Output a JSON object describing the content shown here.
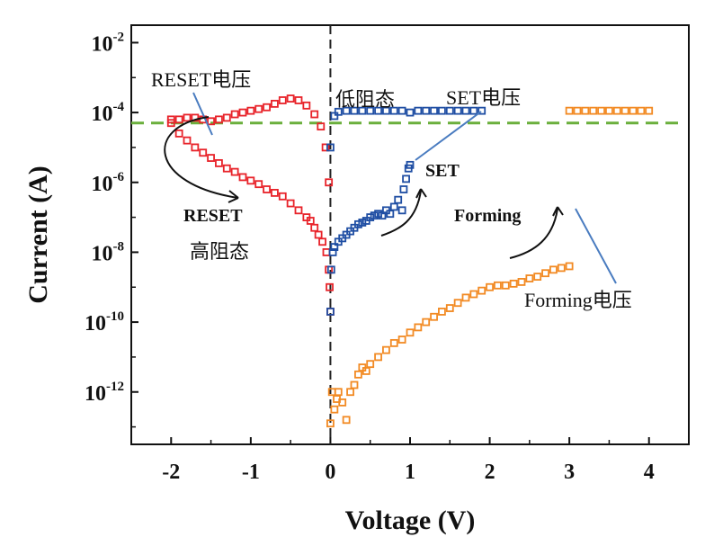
{
  "chart_data": {
    "type": "scatter",
    "xlabel": "Voltage (V)",
    "ylabel": "Current (A)",
    "xlim": [
      -2.5,
      4.5
    ],
    "ylim": [
      -13.5,
      -1.5
    ],
    "y_scale": "log",
    "x_ticks": [
      {
        "value": -2,
        "label": "-2"
      },
      {
        "value": -1,
        "label": "-1"
      },
      {
        "value": 0,
        "label": "0"
      },
      {
        "value": 1,
        "label": "1"
      },
      {
        "value": 2,
        "label": "2"
      },
      {
        "value": 3,
        "label": "3"
      },
      {
        "value": 4,
        "label": "4"
      }
    ],
    "y_ticks": [
      {
        "exp": -2,
        "base": "10",
        "sup": "-2"
      },
      {
        "exp": -4,
        "base": "10",
        "sup": "-4"
      },
      {
        "exp": -6,
        "base": "10",
        "sup": "-6"
      },
      {
        "exp": -8,
        "base": "10",
        "sup": "-8"
      },
      {
        "exp": -10,
        "base": "10",
        "sup": "-10"
      },
      {
        "exp": -12,
        "base": "10",
        "sup": "-12"
      }
    ],
    "reference_lines": [
      {
        "kind": "vertical",
        "x": 0,
        "color": "#222222",
        "style": "dashed"
      },
      {
        "kind": "horizontal",
        "y_exp": -4.3,
        "color": "#6aaf3c",
        "style": "dashed"
      }
    ],
    "series": [
      {
        "color": "#e8232a",
        "points": [
          [
            -1.5,
            -4.25
          ],
          [
            -1.4,
            -4.2
          ],
          [
            -1.3,
            -4.15
          ],
          [
            -1.2,
            -4.05
          ],
          [
            -1.1,
            -4.0
          ],
          [
            -1.0,
            -3.95
          ],
          [
            -0.9,
            -3.9
          ],
          [
            -0.8,
            -3.85
          ],
          [
            -0.7,
            -3.75
          ],
          [
            -0.6,
            -3.65
          ],
          [
            -0.5,
            -3.6
          ],
          [
            -0.4,
            -3.65
          ],
          [
            -0.3,
            -3.8
          ],
          [
            -0.2,
            -4.05
          ],
          [
            -0.12,
            -4.4
          ],
          [
            -0.06,
            -5.0
          ],
          [
            -0.02,
            -6.0
          ],
          [
            -2.0,
            -4.3
          ],
          [
            -1.9,
            -4.6
          ],
          [
            -1.8,
            -4.8
          ],
          [
            -1.7,
            -5.0
          ],
          [
            -1.6,
            -5.15
          ],
          [
            -1.5,
            -5.3
          ],
          [
            -1.4,
            -5.45
          ],
          [
            -1.3,
            -5.6
          ],
          [
            -1.2,
            -5.7
          ],
          [
            -1.1,
            -5.85
          ],
          [
            -1.0,
            -5.95
          ],
          [
            -0.9,
            -6.05
          ],
          [
            -0.8,
            -6.2
          ],
          [
            -0.7,
            -6.3
          ],
          [
            -0.6,
            -6.4
          ],
          [
            -0.5,
            -6.6
          ],
          [
            -0.4,
            -6.8
          ],
          [
            -0.3,
            -7.0
          ],
          [
            -0.25,
            -7.1
          ],
          [
            -0.2,
            -7.3
          ],
          [
            -0.15,
            -7.5
          ],
          [
            -0.1,
            -7.7
          ],
          [
            -0.05,
            -8.0
          ],
          [
            -0.02,
            -8.5
          ],
          [
            -0.01,
            -9.0
          ],
          [
            0.0,
            -9.7
          ],
          [
            -2.0,
            -4.2
          ],
          [
            -1.9,
            -4.2
          ],
          [
            -1.8,
            -4.15
          ],
          [
            -1.7,
            -4.15
          ],
          [
            -1.6,
            -4.2
          ]
        ]
      },
      {
        "color": "#1f4ea3",
        "points": [
          [
            0.0,
            -9.7
          ],
          [
            0.01,
            -8.5
          ],
          [
            0.03,
            -8.0
          ],
          [
            0.05,
            -7.85
          ],
          [
            0.1,
            -7.7
          ],
          [
            0.15,
            -7.6
          ],
          [
            0.2,
            -7.5
          ],
          [
            0.25,
            -7.4
          ],
          [
            0.3,
            -7.3
          ],
          [
            0.35,
            -7.2
          ],
          [
            0.4,
            -7.15
          ],
          [
            0.45,
            -7.1
          ],
          [
            0.5,
            -7.0
          ],
          [
            0.55,
            -6.95
          ],
          [
            0.6,
            -6.9
          ],
          [
            0.65,
            -6.95
          ],
          [
            0.7,
            -6.8
          ],
          [
            0.75,
            -6.9
          ],
          [
            0.8,
            -6.7
          ],
          [
            0.85,
            -6.5
          ],
          [
            0.9,
            -6.8
          ],
          [
            0.92,
            -6.2
          ],
          [
            0.95,
            -5.9
          ],
          [
            0.98,
            -5.6
          ],
          [
            1.0,
            -5.5
          ],
          [
            1.0,
            -4.0
          ],
          [
            1.1,
            -3.95
          ],
          [
            1.2,
            -3.95
          ],
          [
            1.3,
            -3.95
          ],
          [
            1.4,
            -3.95
          ],
          [
            1.5,
            -3.95
          ],
          [
            1.6,
            -3.95
          ],
          [
            1.7,
            -3.95
          ],
          [
            1.8,
            -3.95
          ],
          [
            1.9,
            -3.95
          ],
          [
            0.0,
            -5.0
          ],
          [
            0.05,
            -4.1
          ],
          [
            0.1,
            -3.98
          ],
          [
            0.2,
            -3.95
          ],
          [
            0.3,
            -3.95
          ],
          [
            0.4,
            -3.95
          ],
          [
            0.5,
            -3.95
          ],
          [
            0.6,
            -3.95
          ],
          [
            0.7,
            -3.95
          ],
          [
            0.8,
            -3.95
          ],
          [
            0.9,
            -3.95
          ]
        ]
      },
      {
        "color": "#f28a23",
        "points": [
          [
            0.0,
            -12.9
          ],
          [
            0.02,
            -12.0
          ],
          [
            0.05,
            -12.5
          ],
          [
            0.08,
            -12.2
          ],
          [
            0.1,
            -12.0
          ],
          [
            0.15,
            -12.3
          ],
          [
            0.2,
            -12.8
          ],
          [
            0.25,
            -12.0
          ],
          [
            0.3,
            -11.8
          ],
          [
            0.35,
            -11.5
          ],
          [
            0.4,
            -11.3
          ],
          [
            0.45,
            -11.4
          ],
          [
            0.5,
            -11.2
          ],
          [
            0.6,
            -11.0
          ],
          [
            0.7,
            -10.8
          ],
          [
            0.8,
            -10.6
          ],
          [
            0.9,
            -10.5
          ],
          [
            1.0,
            -10.3
          ],
          [
            1.1,
            -10.15
          ],
          [
            1.2,
            -10.0
          ],
          [
            1.3,
            -9.85
          ],
          [
            1.4,
            -9.7
          ],
          [
            1.5,
            -9.6
          ],
          [
            1.6,
            -9.45
          ],
          [
            1.7,
            -9.3
          ],
          [
            1.8,
            -9.2
          ],
          [
            1.9,
            -9.1
          ],
          [
            2.0,
            -9.0
          ],
          [
            2.1,
            -8.95
          ],
          [
            2.2,
            -8.95
          ],
          [
            2.3,
            -8.9
          ],
          [
            2.4,
            -8.85
          ],
          [
            2.5,
            -8.75
          ],
          [
            2.6,
            -8.7
          ],
          [
            2.7,
            -8.6
          ],
          [
            2.8,
            -8.5
          ],
          [
            2.9,
            -8.45
          ],
          [
            3.0,
            -8.4
          ],
          [
            3.0,
            -3.95
          ],
          [
            3.1,
            -3.95
          ],
          [
            3.2,
            -3.95
          ],
          [
            3.3,
            -3.95
          ],
          [
            3.4,
            -3.95
          ],
          [
            3.5,
            -3.95
          ],
          [
            3.6,
            -3.95
          ],
          [
            3.7,
            -3.95
          ],
          [
            3.8,
            -3.95
          ],
          [
            3.9,
            -3.95
          ],
          [
            4.0,
            -3.95
          ]
        ]
      }
    ],
    "annotations": [
      {
        "key": "reset_voltage",
        "text": "RESET电压"
      },
      {
        "key": "low_resistance",
        "text": "低阻态"
      },
      {
        "key": "set_voltage",
        "text": "SET电压"
      },
      {
        "key": "set",
        "text": "SET"
      },
      {
        "key": "reset",
        "text": "RESET"
      },
      {
        "key": "high_resistance",
        "text": "高阻态"
      },
      {
        "key": "forming",
        "text": "Forming"
      },
      {
        "key": "forming_voltage",
        "text": "Forming电压"
      }
    ]
  }
}
